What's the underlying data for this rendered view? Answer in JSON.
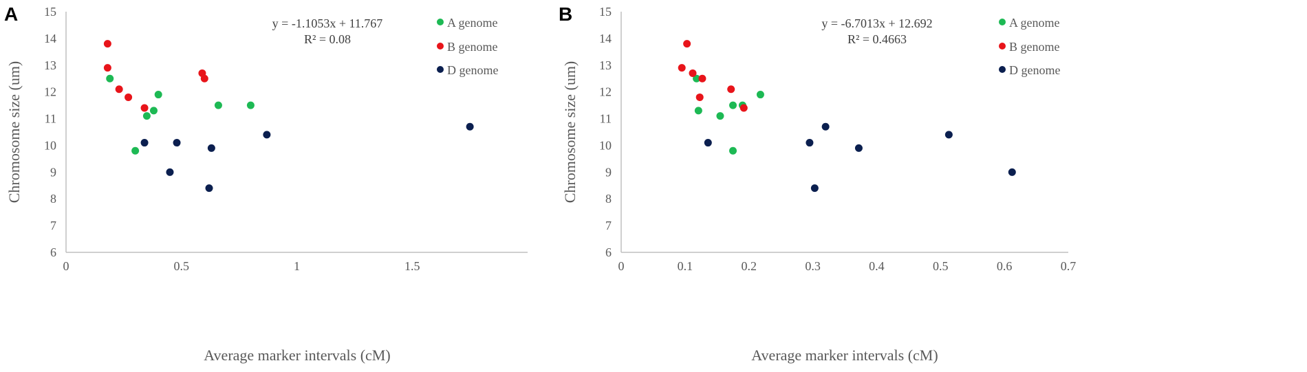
{
  "chart_data": [
    {
      "panel": "A",
      "type": "scatter",
      "xlabel": "Average marker intervals (cM)",
      "ylabel": "Chromosome size (um)",
      "xlim": [
        0,
        2
      ],
      "ylim": [
        6,
        15
      ],
      "xticks": [
        0,
        0.5,
        1,
        1.5
      ],
      "xtick_labels": [
        "0",
        "0.5",
        "1",
        "1.5"
      ],
      "yticks": [
        6,
        7,
        8,
        9,
        10,
        11,
        12,
        13,
        14,
        15
      ],
      "ytick_labels": [
        "6",
        "7",
        "8",
        "9",
        "10",
        "11",
        "12",
        "13",
        "14",
        "15"
      ],
      "equation": "y = -1.1053x + 11.767",
      "r_squared": "R² = 0.08",
      "grid": false,
      "legend": "top-right",
      "series": [
        {
          "name": "A genome",
          "color": "#1db954",
          "points": [
            [
              0.19,
              12.5
            ],
            [
              0.3,
              9.8
            ],
            [
              0.35,
              11.1
            ],
            [
              0.38,
              11.3
            ],
            [
              0.4,
              11.9
            ],
            [
              0.66,
              11.5
            ],
            [
              0.8,
              11.5
            ]
          ]
        },
        {
          "name": "B genome",
          "color": "#e8141a",
          "points": [
            [
              0.18,
              13.8
            ],
            [
              0.18,
              12.9
            ],
            [
              0.23,
              12.1
            ],
            [
              0.27,
              11.8
            ],
            [
              0.34,
              11.4
            ],
            [
              0.59,
              12.7
            ],
            [
              0.6,
              12.5
            ]
          ]
        },
        {
          "name": "D genome",
          "color": "#0b1f4f",
          "points": [
            [
              0.34,
              10.1
            ],
            [
              0.45,
              9.0
            ],
            [
              0.48,
              10.1
            ],
            [
              0.62,
              8.4
            ],
            [
              0.63,
              9.9
            ],
            [
              0.87,
              10.4
            ],
            [
              1.75,
              10.7
            ]
          ]
        }
      ]
    },
    {
      "panel": "B",
      "type": "scatter",
      "xlabel": "Average marker intervals (cM)",
      "ylabel": "Chromosome size (um)",
      "xlim": [
        0,
        0.7
      ],
      "ylim": [
        6,
        15
      ],
      "xticks": [
        0,
        0.1,
        0.2,
        0.3,
        0.4,
        0.5,
        0.6,
        0.7
      ],
      "xtick_labels": [
        "0",
        "0.1",
        "0.2",
        "0.3",
        "0.4",
        "0.5",
        "0.6",
        "0.7"
      ],
      "yticks": [
        6,
        7,
        8,
        9,
        10,
        11,
        12,
        13,
        14,
        15
      ],
      "ytick_labels": [
        "6",
        "7",
        "8",
        "9",
        "10",
        "11",
        "12",
        "13",
        "14",
        "15"
      ],
      "equation": "y = -6.7013x + 12.692",
      "r_squared": "R² = 0.4663",
      "grid": false,
      "legend": "top-right",
      "series": [
        {
          "name": "A genome",
          "color": "#1db954",
          "points": [
            [
              0.118,
              12.5
            ],
            [
              0.121,
              11.3
            ],
            [
              0.155,
              11.1
            ],
            [
              0.175,
              11.5
            ],
            [
              0.175,
              9.8
            ],
            [
              0.19,
              11.5
            ],
            [
              0.218,
              11.9
            ]
          ]
        },
        {
          "name": "B genome",
          "color": "#e8141a",
          "points": [
            [
              0.095,
              12.9
            ],
            [
              0.103,
              13.8
            ],
            [
              0.112,
              12.7
            ],
            [
              0.123,
              11.8
            ],
            [
              0.127,
              12.5
            ],
            [
              0.172,
              12.1
            ],
            [
              0.192,
              11.4
            ]
          ]
        },
        {
          "name": "D genome",
          "color": "#0b1f4f",
          "points": [
            [
              0.136,
              10.1
            ],
            [
              0.295,
              10.1
            ],
            [
              0.303,
              8.4
            ],
            [
              0.32,
              10.7
            ],
            [
              0.372,
              9.9
            ],
            [
              0.513,
              10.4
            ],
            [
              0.612,
              9.0
            ]
          ]
        }
      ]
    }
  ]
}
